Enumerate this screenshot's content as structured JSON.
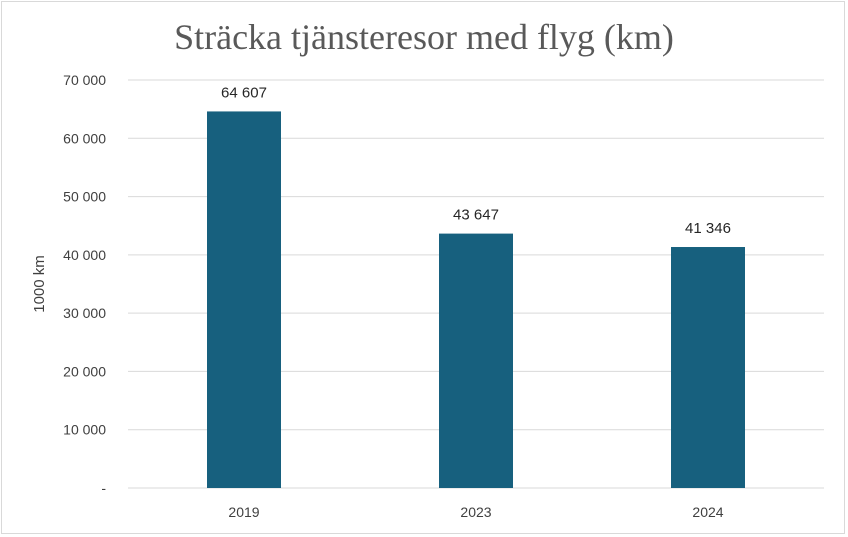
{
  "chart_data": {
    "type": "bar",
    "title": "Sträcka tjänsteresor med flyg (km)",
    "xlabel": "",
    "ylabel": "1000 km",
    "categories": [
      "2019",
      "2023",
      "2024"
    ],
    "values": [
      64607,
      43647,
      41346
    ],
    "data_labels": [
      "64 607",
      "43 647",
      "41 346"
    ],
    "ylim": [
      0,
      70000
    ],
    "yticks": [
      0,
      10000,
      20000,
      30000,
      40000,
      50000,
      60000,
      70000
    ],
    "ytick_labels": [
      "-",
      "10 000",
      "20 000",
      "30 000",
      "40 000",
      "50 000",
      "60 000",
      "70 000"
    ],
    "grid": true,
    "legend": "none",
    "bar_color": "#17607e"
  }
}
